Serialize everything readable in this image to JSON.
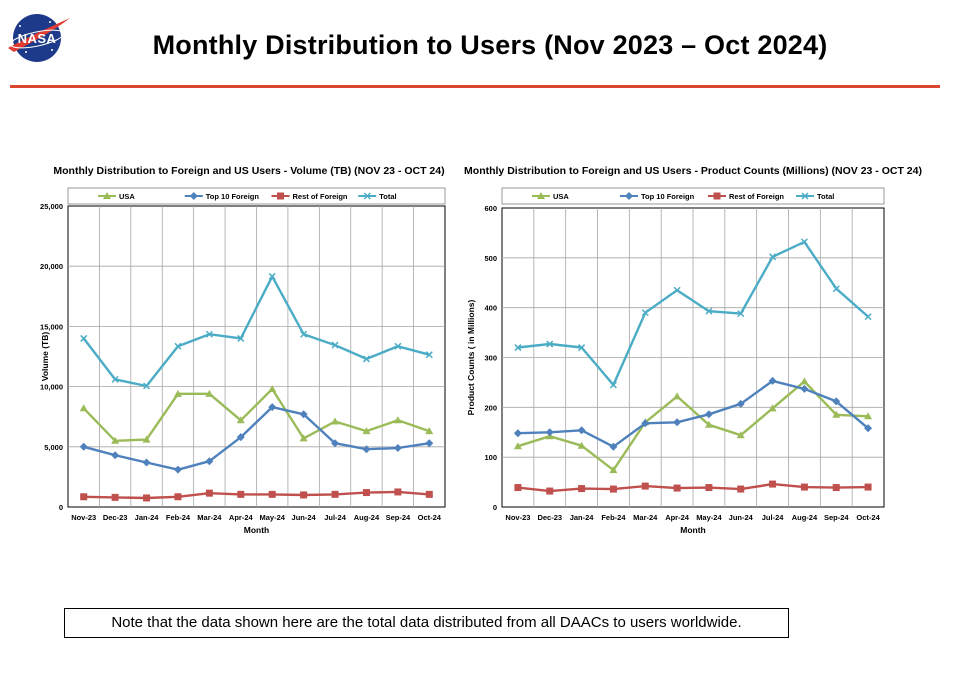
{
  "page": {
    "title": "Monthly Distribution to Users (Nov 2023 – Oct 2024)",
    "logo_text": "NASA",
    "note": "Note that the data shown here are the total data distributed from all DAACs to users worldwide."
  },
  "colors": {
    "accent_rule": "#d9452f",
    "usa": "#9bbb59",
    "top10": "#4f81bd",
    "rest": "#c0504d",
    "total": "#4bacc6",
    "logo_blue": "#1d3a8a",
    "logo_red": "#e03c31"
  },
  "chart_data": [
    {
      "id": "volume",
      "type": "line",
      "title": "Monthly Distribution to Foreign and US Users - Volume  (TB) (NOV 23 - OCT 24)",
      "xlabel": "Month",
      "ylabel": "Volume (TB)",
      "ylim": [
        0,
        25000
      ],
      "yticks": [
        0,
        5000,
        10000,
        15000,
        20000,
        25000
      ],
      "ytick_labels": [
        "0",
        "5,000",
        "10,000",
        "15,000",
        "20,000",
        "25,000"
      ],
      "grid": true,
      "legend": "top",
      "categories": [
        "Nov-23",
        "Dec-23",
        "Jan-24",
        "Feb-24",
        "Mar-24",
        "Apr-24",
        "May-24",
        "Jun-24",
        "Jul-24",
        "Aug-24",
        "Sep-24",
        "Oct-24"
      ],
      "series": [
        {
          "name": "USA",
          "color": "#9bbb59",
          "marker": "triangle",
          "values": [
            8200,
            5500,
            5600,
            9400,
            9400,
            7200,
            9800,
            5700,
            7100,
            6300,
            7200,
            6300
          ]
        },
        {
          "name": "Top 10 Foreign",
          "color": "#4f81bd",
          "marker": "diamond",
          "values": [
            5000,
            4300,
            3700,
            3100,
            3800,
            5800,
            8300,
            7700,
            5300,
            4800,
            4900,
            5300
          ]
        },
        {
          "name": "Rest of Foreign",
          "color": "#c0504d",
          "marker": "square",
          "values": [
            850,
            800,
            750,
            850,
            1150,
            1050,
            1050,
            1000,
            1050,
            1200,
            1250,
            1050
          ]
        },
        {
          "name": "Total",
          "color": "#4bacc6",
          "marker": "x",
          "values": [
            14000,
            10600,
            10050,
            13350,
            14350,
            14000,
            19150,
            14350,
            13450,
            12300,
            13350,
            12650
          ]
        }
      ]
    },
    {
      "id": "counts",
      "type": "line",
      "title": "Monthly Distribution to Foreign and US Users - Product Counts (Millions) (NOV 23 - OCT 24)",
      "xlabel": "Month",
      "ylabel": "Product Counts ( in Millions)",
      "ylim": [
        0,
        600
      ],
      "yticks": [
        0,
        100,
        200,
        300,
        400,
        500,
        600
      ],
      "ytick_labels": [
        "0",
        "100",
        "200",
        "300",
        "400",
        "500",
        "600"
      ],
      "grid": true,
      "legend": "top",
      "categories": [
        "Nov-23",
        "Dec-23",
        "Jan-24",
        "Feb-24",
        "Mar-24",
        "Apr-24",
        "May-24",
        "Jun-24",
        "Jul-24",
        "Aug-24",
        "Sep-24",
        "Oct-24"
      ],
      "series": [
        {
          "name": "USA",
          "color": "#9bbb59",
          "marker": "triangle",
          "values": [
            122,
            142,
            123,
            74,
            170,
            222,
            165,
            144,
            198,
            252,
            185,
            182
          ]
        },
        {
          "name": "Top 10 Foreign",
          "color": "#4f81bd",
          "marker": "diamond",
          "values": [
            148,
            150,
            154,
            121,
            168,
            170,
            186,
            207,
            253,
            237,
            212,
            158
          ]
        },
        {
          "name": "Rest of Foreign",
          "color": "#c0504d",
          "marker": "square",
          "values": [
            39,
            32,
            37,
            36,
            42,
            38,
            39,
            36,
            46,
            40,
            39,
            40
          ]
        },
        {
          "name": "Total",
          "color": "#4bacc6",
          "marker": "x",
          "values": [
            320,
            327,
            320,
            245,
            390,
            435,
            393,
            388,
            502,
            532,
            438,
            382
          ]
        }
      ]
    }
  ]
}
